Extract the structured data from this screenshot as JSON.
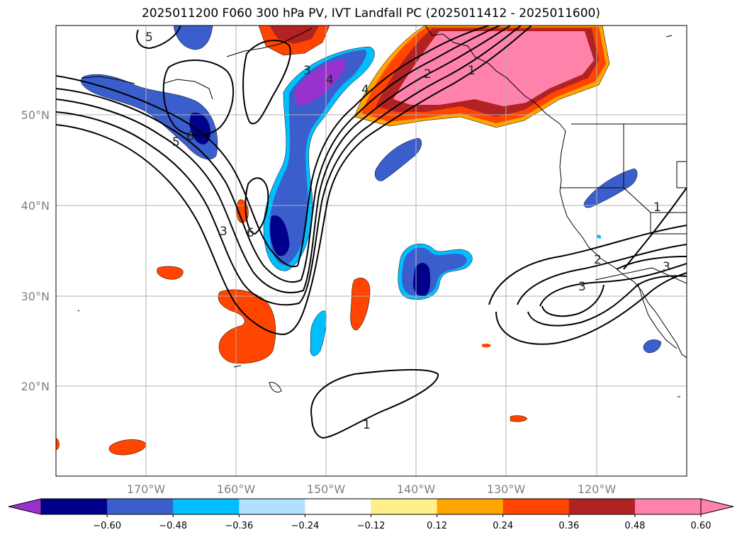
{
  "title": "2025011200 F060 300 hPa PV, IVT Landfall PC (2025011412 - 2025011600)",
  "lat_labels": [
    "50°N",
    "40°N",
    "30°N",
    "20°N"
  ],
  "lon_labels": [
    "170°W",
    "160°W",
    "150°W",
    "140°W",
    "130°W",
    "120°W"
  ],
  "pv_contour_labels": [
    "5",
    "4",
    "4",
    "3",
    "2",
    "1",
    "5",
    "6",
    "6",
    "3",
    "1",
    "3",
    "2",
    "3",
    "1"
  ],
  "colorbar": {
    "ticks": [
      "−0.60",
      "−0.48",
      "−0.36",
      "−0.24",
      "−0.12",
      "0.12",
      "0.24",
      "0.36",
      "0.48",
      "0.60"
    ],
    "colors": [
      "#9932cc",
      "#00008b",
      "#3a5fcd",
      "#00bfff",
      "#b0e2ff",
      "#ffffff",
      "#fff08a",
      "#ffa500",
      "#ff4500",
      "#b22222",
      "#ff82ab",
      "#ff82ab"
    ]
  },
  "colors": {
    "grid": "#b0b0b0",
    "coast": "#000000",
    "contour": "#000000"
  }
}
